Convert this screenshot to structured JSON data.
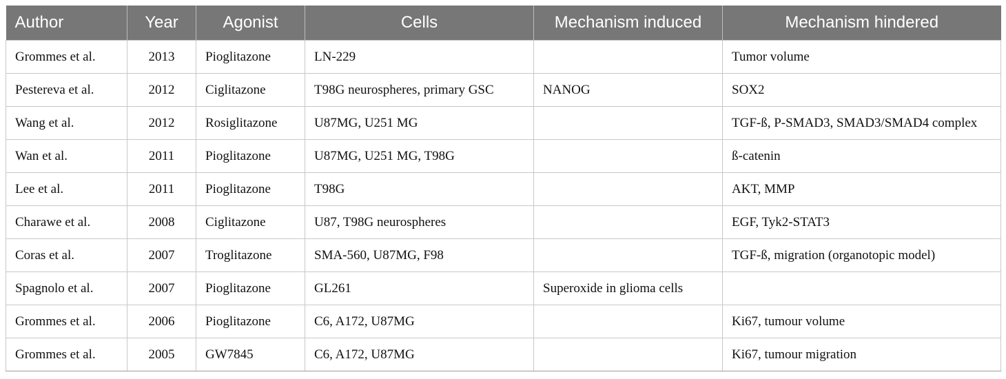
{
  "table": {
    "headers": {
      "author": "Author",
      "year": "Year",
      "agonist": "Agonist",
      "cells": "Cells",
      "induced": "Mechanism induced",
      "hindered": "Mechanism hindered"
    },
    "rows": [
      {
        "author": "Grommes et al.",
        "year": "2013",
        "agonist": "Pioglitazone",
        "cells": "LN-229",
        "induced": "",
        "hindered": "Tumor volume"
      },
      {
        "author": "Pestereva et al.",
        "year": "2012",
        "agonist": "Ciglitazone",
        "cells": "T98G neurospheres, primary GSC",
        "induced": "NANOG",
        "hindered": "SOX2"
      },
      {
        "author": "Wang et al.",
        "year": "2012",
        "agonist": "Rosiglitazone",
        "cells": "U87MG, U251 MG",
        "induced": "",
        "hindered": "TGF-ß, P-SMAD3, SMAD3/SMAD4 complex"
      },
      {
        "author": "Wan et al.",
        "year": "2011",
        "agonist": "Pioglitazone",
        "cells": "U87MG, U251 MG, T98G",
        "induced": "",
        "hindered": "ß-catenin"
      },
      {
        "author": "Lee et al.",
        "year": "2011",
        "agonist": "Pioglitazone",
        "cells": "T98G",
        "induced": "",
        "hindered": "AKT, MMP"
      },
      {
        "author": "Charawe et al.",
        "year": "2008",
        "agonist": "Ciglitazone",
        "cells": "U87, T98G neurospheres",
        "induced": "",
        "hindered": "EGF, Tyk2-STAT3"
      },
      {
        "author": "Coras et al.",
        "year": "2007",
        "agonist": "Troglitazone",
        "cells": "SMA-560, U87MG, F98",
        "induced": "",
        "hindered": "TGF-ß, migration (organotopic model)"
      },
      {
        "author": "Spagnolo et al.",
        "year": "2007",
        "agonist": "Pioglitazone",
        "cells": "GL261",
        "induced": "Superoxide in glioma cells",
        "hindered": ""
      },
      {
        "author": "Grommes et al.",
        "year": "2006",
        "agonist": "Pioglitazone",
        "cells": "C6, A172, U87MG",
        "induced": "",
        "hindered": "Ki67, tumour volume"
      },
      {
        "author": "Grommes et al.",
        "year": "2005",
        "agonist": "GW7845",
        "cells": "C6, A172, U87MG",
        "induced": "",
        "hindered": "Ki67, tumour migration"
      }
    ]
  }
}
